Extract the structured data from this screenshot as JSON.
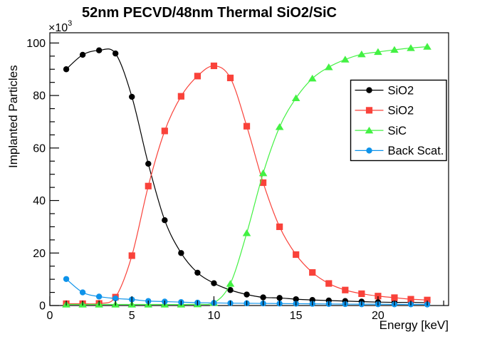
{
  "title": "52nm PECVD/48nm Thermal SiO2/SiC",
  "colors": {
    "background": "#ffffff",
    "frame": "#000000",
    "text": "#000000",
    "series_black": "#000000",
    "series_red": "#f9423a",
    "series_green": "#43f143",
    "series_blue": "#0e93ea"
  },
  "chart_data": {
    "type": "line",
    "title": "52nm PECVD/48nm Thermal SiO2/SiC",
    "xlabel": "Energy [keV]",
    "ylabel": "Implanted Particles",
    "y_multiplier": {
      "base": "×10",
      "exponent": "3"
    },
    "xlim": [
      0,
      24.3
    ],
    "ylim": [
      0,
      103.9
    ],
    "x_major_ticks": [
      0,
      5,
      10,
      15,
      20
    ],
    "x_minor_step": 1,
    "y_major_ticks": [
      0,
      20,
      40,
      60,
      80,
      100
    ],
    "y_minor_step": 5,
    "grid": false,
    "legend_position": "middle-right",
    "x": [
      1,
      2,
      3,
      4,
      5,
      6,
      7,
      8,
      9,
      10,
      11,
      12,
      13,
      14,
      15,
      16,
      17,
      18,
      19,
      20,
      21,
      22,
      23
    ],
    "series": [
      {
        "id": "sio2-pecvd",
        "name": "SiO2",
        "color": "#000000",
        "marker": "circle",
        "values": [
          90,
          95.5,
          97.2,
          96,
          79.5,
          54,
          32.5,
          20,
          12.5,
          8.5,
          5.9,
          4.2,
          3.1,
          2.9,
          2.4,
          2.1,
          1.9,
          1.7,
          1.5,
          1.3,
          1.2,
          1.2,
          1.1
        ]
      },
      {
        "id": "sio2-thermal",
        "name": "SiO2",
        "color": "#f9423a",
        "marker": "square",
        "values": [
          0.7,
          0.7,
          0.8,
          3.2,
          19,
          45.5,
          66.5,
          79.7,
          87.4,
          91.3,
          86.7,
          68.3,
          46.8,
          30,
          19.4,
          12.6,
          8.4,
          5.9,
          4.5,
          3.6,
          3.0,
          2.4,
          2.1
        ]
      },
      {
        "id": "sic",
        "name": "SiC",
        "color": "#43f143",
        "marker": "triangle",
        "values": [
          0.4,
          0.4,
          0.4,
          0.4,
          0.4,
          0.4,
          0.4,
          0.4,
          0.5,
          1.0,
          8.3,
          27.6,
          50.4,
          68,
          79,
          86.5,
          90.8,
          93.7,
          95.7,
          96.6,
          97.4,
          98.1,
          98.6
        ]
      },
      {
        "id": "back-scat",
        "name": "Back Scat.",
        "color": "#0e93ea",
        "marker": "circle",
        "values": [
          10.1,
          5.0,
          3.4,
          2.7,
          2.3,
          1.7,
          1.5,
          1.3,
          1.1,
          1.0,
          0.9,
          0.85,
          0.8,
          0.75,
          0.7,
          0.65,
          0.6,
          0.55,
          0.5,
          0.5,
          0.45,
          0.45,
          0.4
        ]
      }
    ]
  }
}
